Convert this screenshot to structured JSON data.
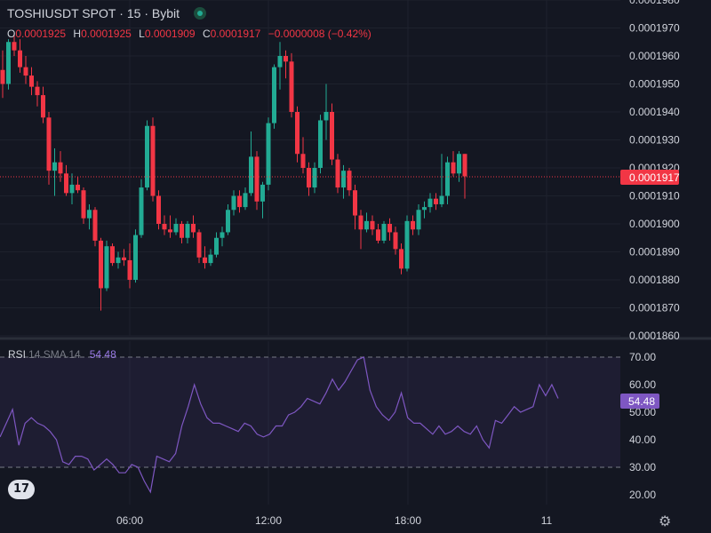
{
  "header": {
    "symbol": "TOSHIUSDT SPOT",
    "sep1": "·",
    "interval": "15",
    "sep2": "·",
    "exchange": "Bybit"
  },
  "ohlc": {
    "o_label": "O",
    "o_value": "0.0001925",
    "h_label": "H",
    "h_value": "0.0001925",
    "l_label": "L",
    "l_value": "0.0001909",
    "c_label": "C",
    "c_value": "0.0001917",
    "change": "−0.0000008 (−0.42%)"
  },
  "rsi_legend": {
    "name": "RSI",
    "params": "14 SMA 14",
    "value": "54.48"
  },
  "colors": {
    "up": "#22ab94",
    "down": "#f23645",
    "rsi": "#7e57c2",
    "background": "#141722"
  },
  "chart_data": [
    {
      "type": "candlestick",
      "yticks": [
        "0.0001980",
        "0.0001970",
        "0.0001960",
        "0.0001950",
        "0.0001940",
        "0.0001930",
        "0.0001920",
        "0.0001910",
        "0.0001900",
        "0.0001890",
        "0.0001880",
        "0.0001870",
        "0.0001860"
      ],
      "ylim": [
        0.000186,
        0.000198
      ],
      "xticks": [
        "06:00",
        "12:00",
        "18:00",
        "11"
      ],
      "last_price_label": "0.0001917",
      "candles": [
        {
          "o": 0.0001955,
          "h": 0.0001962,
          "l": 0.0001945,
          "c": 0.000195
        },
        {
          "o": 0.000195,
          "h": 0.0001966,
          "l": 0.0001948,
          "c": 0.0001965
        },
        {
          "o": 0.0001965,
          "h": 0.0001968,
          "l": 0.000196,
          "c": 0.0001962
        },
        {
          "o": 0.0001962,
          "h": 0.0001966,
          "l": 0.0001954,
          "c": 0.0001956
        },
        {
          "o": 0.0001956,
          "h": 0.000196,
          "l": 0.000195,
          "c": 0.0001953
        },
        {
          "o": 0.0001953,
          "h": 0.0001956,
          "l": 0.0001946,
          "c": 0.0001949
        },
        {
          "o": 0.0001949,
          "h": 0.0001951,
          "l": 0.0001942,
          "c": 0.0001946
        },
        {
          "o": 0.0001946,
          "h": 0.0001949,
          "l": 0.0001936,
          "c": 0.0001938
        },
        {
          "o": 0.0001938,
          "h": 0.000194,
          "l": 0.0001914,
          "c": 0.0001919
        },
        {
          "o": 0.0001919,
          "h": 0.0001927,
          "l": 0.000191,
          "c": 0.0001922
        },
        {
          "o": 0.0001922,
          "h": 0.0001926,
          "l": 0.0001915,
          "c": 0.0001918
        },
        {
          "o": 0.0001918,
          "h": 0.0001921,
          "l": 0.000191,
          "c": 0.0001911
        },
        {
          "o": 0.0001911,
          "h": 0.0001918,
          "l": 0.0001907,
          "c": 0.0001914
        },
        {
          "o": 0.0001914,
          "h": 0.0001917,
          "l": 0.0001911,
          "c": 0.0001912
        },
        {
          "o": 0.0001912,
          "h": 0.0001913,
          "l": 0.00019,
          "c": 0.0001902
        },
        {
          "o": 0.0001902,
          "h": 0.0001907,
          "l": 0.0001898,
          "c": 0.0001905
        },
        {
          "o": 0.0001905,
          "h": 0.0001906,
          "l": 0.0001892,
          "c": 0.0001894
        },
        {
          "o": 0.0001894,
          "h": 0.0001895,
          "l": 0.0001869,
          "c": 0.0001877
        },
        {
          "o": 0.0001877,
          "h": 0.0001894,
          "l": 0.0001876,
          "c": 0.0001892
        },
        {
          "o": 0.0001892,
          "h": 0.0001893,
          "l": 0.0001885,
          "c": 0.0001886
        },
        {
          "o": 0.0001886,
          "h": 0.000189,
          "l": 0.0001884,
          "c": 0.0001888
        },
        {
          "o": 0.0001888,
          "h": 0.0001891,
          "l": 0.0001885,
          "c": 0.0001887
        },
        {
          "o": 0.0001887,
          "h": 0.0001893,
          "l": 0.0001877,
          "c": 0.000188
        },
        {
          "o": 0.000188,
          "h": 0.0001898,
          "l": 0.0001879,
          "c": 0.0001896
        },
        {
          "o": 0.0001896,
          "h": 0.0001916,
          "l": 0.0001895,
          "c": 0.0001913
        },
        {
          "o": 0.0001913,
          "h": 0.0001937,
          "l": 0.0001912,
          "c": 0.0001935
        },
        {
          "o": 0.0001935,
          "h": 0.0001938,
          "l": 0.0001908,
          "c": 0.000191
        },
        {
          "o": 0.000191,
          "h": 0.0001912,
          "l": 0.0001898,
          "c": 0.00019
        },
        {
          "o": 0.00019,
          "h": 0.0001903,
          "l": 0.0001896,
          "c": 0.0001898
        },
        {
          "o": 0.0001898,
          "h": 0.0001903,
          "l": 0.0001895,
          "c": 0.0001897
        },
        {
          "o": 0.0001897,
          "h": 0.0001902,
          "l": 0.0001896,
          "c": 0.00019
        },
        {
          "o": 0.00019,
          "h": 0.0001901,
          "l": 0.0001893,
          "c": 0.0001895
        },
        {
          "o": 0.0001895,
          "h": 0.0001901,
          "l": 0.0001893,
          "c": 0.00019
        },
        {
          "o": 0.00019,
          "h": 0.0001903,
          "l": 0.0001895,
          "c": 0.0001897
        },
        {
          "o": 0.0001897,
          "h": 0.0001898,
          "l": 0.0001886,
          "c": 0.0001888
        },
        {
          "o": 0.0001888,
          "h": 0.0001892,
          "l": 0.0001884,
          "c": 0.0001886
        },
        {
          "o": 0.0001886,
          "h": 0.0001891,
          "l": 0.0001885,
          "c": 0.0001889
        },
        {
          "o": 0.0001889,
          "h": 0.0001897,
          "l": 0.0001888,
          "c": 0.0001895
        },
        {
          "o": 0.0001895,
          "h": 0.0001899,
          "l": 0.0001892,
          "c": 0.0001897
        },
        {
          "o": 0.0001897,
          "h": 0.0001907,
          "l": 0.0001896,
          "c": 0.0001905
        },
        {
          "o": 0.0001905,
          "h": 0.0001912,
          "l": 0.0001903,
          "c": 0.000191
        },
        {
          "o": 0.000191,
          "h": 0.0001912,
          "l": 0.0001904,
          "c": 0.0001906
        },
        {
          "o": 0.0001906,
          "h": 0.0001913,
          "l": 0.0001905,
          "c": 0.0001911
        },
        {
          "o": 0.0001911,
          "h": 0.0001933,
          "l": 0.000191,
          "c": 0.0001924
        },
        {
          "o": 0.0001924,
          "h": 0.0001926,
          "l": 0.0001905,
          "c": 0.0001908
        },
        {
          "o": 0.0001908,
          "h": 0.0001915,
          "l": 0.0001902,
          "c": 0.0001914
        },
        {
          "o": 0.0001914,
          "h": 0.0001938,
          "l": 0.0001912,
          "c": 0.0001936
        },
        {
          "o": 0.0001936,
          "h": 0.0001957,
          "l": 0.0001934,
          "c": 0.0001956
        },
        {
          "o": 0.0001956,
          "h": 0.0001965,
          "l": 0.0001948,
          "c": 0.000196
        },
        {
          "o": 0.000196,
          "h": 0.0001962,
          "l": 0.0001952,
          "c": 0.0001958
        },
        {
          "o": 0.0001958,
          "h": 0.0001961,
          "l": 0.0001938,
          "c": 0.000194
        },
        {
          "o": 0.000194,
          "h": 0.0001942,
          "l": 0.0001922,
          "c": 0.0001925
        },
        {
          "o": 0.0001925,
          "h": 0.0001931,
          "l": 0.0001918,
          "c": 0.000192
        },
        {
          "o": 0.000192,
          "h": 0.0001922,
          "l": 0.000191,
          "c": 0.0001913
        },
        {
          "o": 0.0001913,
          "h": 0.0001922,
          "l": 0.0001911,
          "c": 0.000192
        },
        {
          "o": 0.000192,
          "h": 0.0001939,
          "l": 0.0001918,
          "c": 0.0001937
        },
        {
          "o": 0.0001937,
          "h": 0.000195,
          "l": 0.000193,
          "c": 0.000194
        },
        {
          "o": 0.000194,
          "h": 0.0001943,
          "l": 0.0001921,
          "c": 0.0001923
        },
        {
          "o": 0.0001923,
          "h": 0.0001925,
          "l": 0.0001911,
          "c": 0.0001913
        },
        {
          "o": 0.0001913,
          "h": 0.0001921,
          "l": 0.0001909,
          "c": 0.0001919
        },
        {
          "o": 0.0001919,
          "h": 0.000192,
          "l": 0.000191,
          "c": 0.0001912
        },
        {
          "o": 0.0001912,
          "h": 0.0001914,
          "l": 0.0001898,
          "c": 0.0001903
        },
        {
          "o": 0.0001903,
          "h": 0.0001905,
          "l": 0.0001891,
          "c": 0.0001898
        },
        {
          "o": 0.0001898,
          "h": 0.0001904,
          "l": 0.0001897,
          "c": 0.0001901
        },
        {
          "o": 0.0001901,
          "h": 0.0001903,
          "l": 0.0001896,
          "c": 0.0001898
        },
        {
          "o": 0.0001898,
          "h": 0.00019,
          "l": 0.0001893,
          "c": 0.0001894
        },
        {
          "o": 0.0001894,
          "h": 0.0001901,
          "l": 0.0001893,
          "c": 0.00019
        },
        {
          "o": 0.00019,
          "h": 0.0001902,
          "l": 0.0001894,
          "c": 0.0001897
        },
        {
          "o": 0.0001897,
          "h": 0.0001899,
          "l": 0.0001889,
          "c": 0.0001891
        },
        {
          "o": 0.0001891,
          "h": 0.0001893,
          "l": 0.0001882,
          "c": 0.0001884
        },
        {
          "o": 0.0001884,
          "h": 0.0001903,
          "l": 0.0001883,
          "c": 0.0001901
        },
        {
          "o": 0.0001901,
          "h": 0.0001903,
          "l": 0.0001896,
          "c": 0.0001898
        },
        {
          "o": 0.0001898,
          "h": 0.0001907,
          "l": 0.0001896,
          "c": 0.0001905
        },
        {
          "o": 0.0001905,
          "h": 0.0001908,
          "l": 0.0001902,
          "c": 0.0001906
        },
        {
          "o": 0.0001906,
          "h": 0.0001911,
          "l": 0.0001904,
          "c": 0.0001909
        },
        {
          "o": 0.0001909,
          "h": 0.0001911,
          "l": 0.0001905,
          "c": 0.0001907
        },
        {
          "o": 0.0001907,
          "h": 0.0001925,
          "l": 0.0001906,
          "c": 0.000191
        },
        {
          "o": 0.000191,
          "h": 0.0001924,
          "l": 0.0001907,
          "c": 0.0001922
        },
        {
          "o": 0.0001922,
          "h": 0.0001926,
          "l": 0.0001917,
          "c": 0.0001918
        },
        {
          "o": 0.0001918,
          "h": 0.0001926,
          "l": 0.0001915,
          "c": 0.0001925
        },
        {
          "o": 0.0001925,
          "h": 0.0001925,
          "l": 0.0001909,
          "c": 0.0001917
        }
      ]
    },
    {
      "type": "line",
      "name": "RSI",
      "yticks": [
        "70.00",
        "60.00",
        "50.00",
        "40.00",
        "30.00",
        "20.00"
      ],
      "ylim": [
        16,
        72
      ],
      "bands": [
        70,
        30
      ],
      "last_value_label": "54.48",
      "values": [
        41,
        46,
        51,
        38,
        46,
        48,
        46,
        45,
        43,
        40,
        32,
        31,
        34,
        34,
        33,
        29,
        31,
        33,
        31,
        28,
        28,
        31,
        30,
        25,
        21,
        34,
        33,
        32,
        35,
        45,
        52,
        60,
        53,
        48,
        46,
        46,
        45,
        44,
        43,
        46,
        45,
        42,
        41,
        42,
        45,
        45,
        49,
        50,
        52,
        55,
        54,
        53,
        57,
        62,
        58,
        61,
        65,
        69,
        70,
        58,
        52,
        49,
        47,
        50,
        57,
        48,
        46,
        46,
        44,
        42,
        45,
        42,
        43,
        45,
        43,
        42,
        45,
        40,
        37,
        47,
        46,
        49,
        52,
        50,
        51,
        52,
        60,
        56,
        60,
        55
      ]
    }
  ]
}
